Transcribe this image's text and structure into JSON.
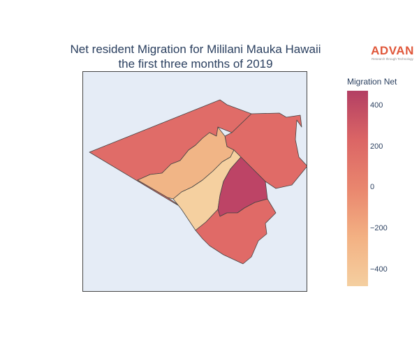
{
  "title": {
    "line1": "Net resident Migration for Mililani Mauka Hawaii",
    "line2": "the first three months of 2019"
  },
  "logo": {
    "word": "ADVAN",
    "tagline": "Research through Technology"
  },
  "colorbar": {
    "title": "Migration Net",
    "ticks": [
      "400",
      "200",
      "0",
      "−200",
      "−400"
    ],
    "colors": [
      "#b33f64",
      "#db6565",
      "#e9866e",
      "#f3b183",
      "#f4cfa0"
    ]
  },
  "regions": [
    {
      "name": "north-west",
      "value": 200,
      "color": "#e06c68"
    },
    {
      "name": "north-east",
      "value": 220,
      "color": "#e06b67"
    },
    {
      "name": "central-west-band",
      "value": -200,
      "color": "#f1b586"
    },
    {
      "name": "central-south-band",
      "value": -380,
      "color": "#f5d0a0"
    },
    {
      "name": "central-core",
      "value": 470,
      "color": "#bd4466"
    },
    {
      "name": "south",
      "value": 220,
      "color": "#e06a67"
    }
  ]
}
